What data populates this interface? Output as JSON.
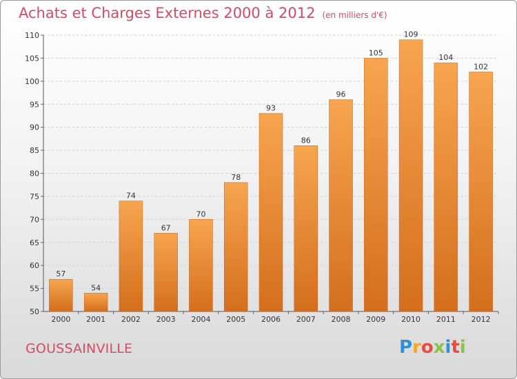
{
  "header": {
    "title": "Achats et Charges Externes 2000 à 2012",
    "subtitle": "(en milliers d'€)"
  },
  "footer": {
    "city": "GOUSSAINVILLE",
    "logo_letters": [
      "P",
      "r",
      "o",
      "x",
      "i",
      "t",
      "i"
    ],
    "logo_colors": [
      "#2f8fd8",
      "#f5a623",
      "#e94c3d",
      "#8bc34a",
      "#2f8fd8",
      "#e94c3d",
      "#8bc34a"
    ]
  },
  "colors": {
    "bar_top": "#f7a54f",
    "bar_bottom": "#d46e1d",
    "title": "#d84a64"
  },
  "chart_data": {
    "type": "bar",
    "title": "Achats et Charges Externes 2000 à 2012",
    "subtitle": "(en milliers d'€)",
    "categories": [
      "2000",
      "2001",
      "2002",
      "2003",
      "2004",
      "2005",
      "2006",
      "2007",
      "2008",
      "2009",
      "2010",
      "2011",
      "2012"
    ],
    "values": [
      57,
      54,
      74,
      67,
      70,
      78,
      93,
      86,
      96,
      105,
      109,
      104,
      102
    ],
    "ylim": [
      50,
      110
    ],
    "yticks": [
      50,
      55,
      60,
      65,
      70,
      75,
      80,
      85,
      90,
      95,
      100,
      105,
      110
    ],
    "grid": true
  }
}
